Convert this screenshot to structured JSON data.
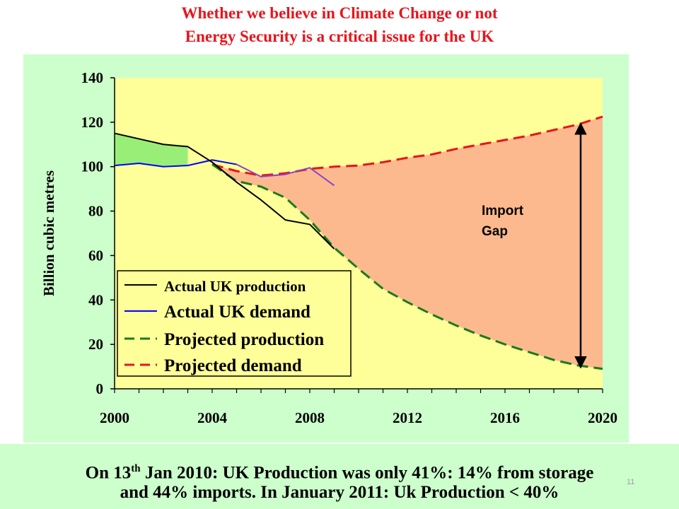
{
  "title_line1": "Whether we believe in Climate Change or not",
  "title_line2": "Energy Security is a critical issue for the UK",
  "footer": {
    "line1_pre": "On 13",
    "line1_sup": "th",
    "line1_post": " Jan 2010: UK Production was only 41%: 14% from storage",
    "line2": "and 44% imports.   In January 2011: Uk Production < 40%",
    "slide_number": "11"
  },
  "colors": {
    "title": "#e8141b",
    "panel_bg": "#ccffcc",
    "plot_bg": "#ffff99",
    "import_gap_fill": "#fcb98e",
    "surplus_fill": "#99ee77",
    "actual_production": "#000000",
    "actual_demand": "#0000ff",
    "projected_production": "#1a7a1a",
    "projected_demand": "#e8141b",
    "recent_demand": "#8844cc"
  },
  "chart_data": {
    "type": "line",
    "title": "",
    "xlabel": "",
    "ylabel": "Billion cubic metres",
    "xlim": [
      2000,
      2020
    ],
    "ylim": [
      0,
      140
    ],
    "xticks": [
      "2000",
      "2004",
      "2008",
      "2012",
      "2016",
      "2020"
    ],
    "yticks": [
      "0",
      "20",
      "40",
      "60",
      "80",
      "100",
      "120",
      "140"
    ],
    "grid": false,
    "legend_position": "bottom-left",
    "annotation": {
      "text": [
        "Import",
        "Gap"
      ],
      "arrow_x": 2019.1,
      "arrow_y": [
        9,
        120
      ]
    },
    "series": [
      {
        "name": "Actual UK production",
        "style": "solid",
        "color_key": "actual_production",
        "x": [
          2000,
          2001,
          2002,
          2003,
          2004,
          2005,
          2006,
          2007,
          2008,
          2009
        ],
        "y": [
          115,
          112.5,
          110,
          109,
          102,
          93,
          85,
          76,
          74,
          63
        ]
      },
      {
        "name": "Actual UK demand",
        "style": "solid",
        "color_key": "actual_demand",
        "x": [
          2000,
          2001,
          2002,
          2003,
          2004,
          2005
        ],
        "y": [
          100.5,
          101.5,
          100,
          100.5,
          103,
          101
        ]
      },
      {
        "name": "",
        "style": "solid",
        "color_key": "recent_demand",
        "x": [
          2005,
          2006,
          2007,
          2008,
          2009
        ],
        "y": [
          101,
          95.5,
          96.5,
          99.5,
          91.5
        ]
      },
      {
        "name": "Projected production",
        "style": "dashed",
        "color_key": "projected_production",
        "x": [
          2004,
          2005,
          2006,
          2007,
          2008,
          2009,
          2010,
          2011,
          2012,
          2013,
          2014,
          2015,
          2016,
          2017,
          2018,
          2019,
          2020
        ],
        "y": [
          101,
          93.5,
          91,
          86,
          76,
          63.5,
          54,
          45,
          39,
          33.5,
          28.5,
          24,
          20,
          16.5,
          13,
          10.5,
          9
        ]
      },
      {
        "name": "Projected demand",
        "style": "dashed",
        "color_key": "projected_demand",
        "x": [
          2004,
          2005,
          2006,
          2007,
          2008,
          2009,
          2010,
          2011,
          2012,
          2013,
          2014,
          2015,
          2016,
          2017,
          2018,
          2019,
          2020
        ],
        "y": [
          101,
          98,
          96,
          97,
          99,
          100,
          100.5,
          102,
          104,
          105.5,
          108,
          110,
          112,
          114,
          116.5,
          119,
          122.5
        ]
      }
    ]
  }
}
